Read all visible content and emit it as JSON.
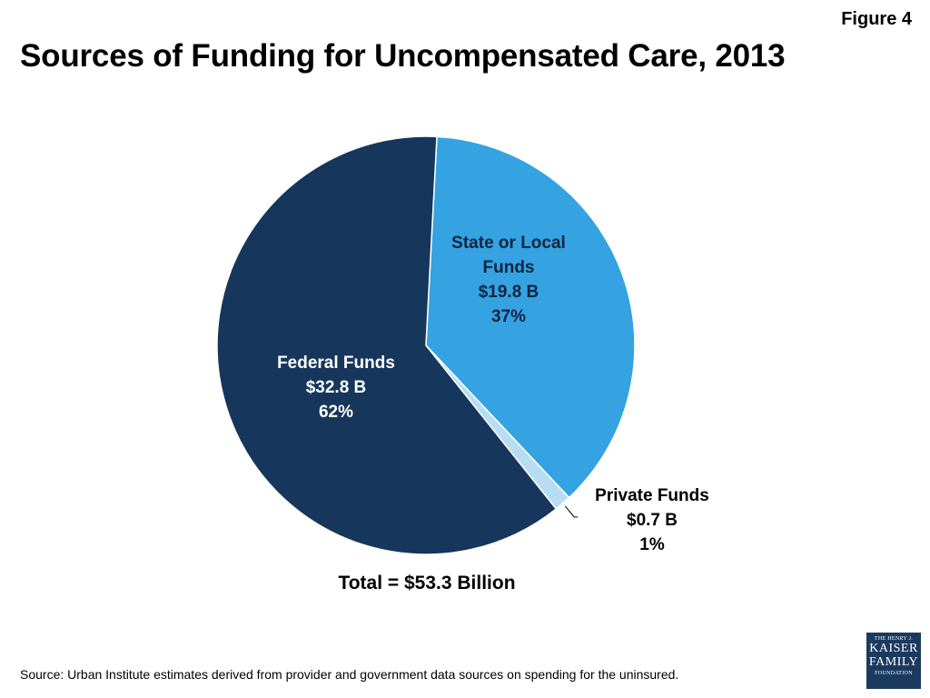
{
  "figure_label": "Figure 4",
  "source": "Source: Urban Institute estimates derived from provider and government data sources on spending for the uninsured.",
  "total": "Total = $53.3 Billion",
  "logo": {
    "line1": "THE HENRY J.",
    "line2": "KAISER",
    "line3": "FAMILY",
    "line4": "FOUNDATION"
  },
  "chart_data": {
    "type": "pie",
    "title": "Sources of Funding for Uncompensated Care, 2013",
    "slices": [
      {
        "name": "State or Local Funds",
        "label_lines": [
          "State or Local",
          "Funds"
        ],
        "value": 19.8,
        "value_label": "$19.8 B",
        "percent_label": "37%",
        "color": "#35a2e1"
      },
      {
        "name": "Private Funds",
        "label_lines": [
          "Private Funds"
        ],
        "value": 0.7,
        "value_label": "$0.7 B",
        "percent_label": "1%",
        "color": "#b7ddf3"
      },
      {
        "name": "Federal Funds",
        "label_lines": [
          "Federal Funds"
        ],
        "value": 32.8,
        "value_label": "$32.8 B",
        "percent_label": "62%",
        "color": "#16365b"
      }
    ]
  }
}
